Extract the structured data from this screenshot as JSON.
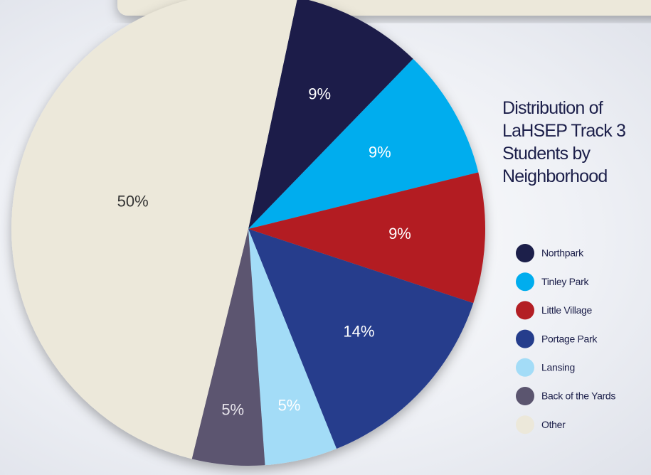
{
  "chart_data": {
    "type": "pie",
    "title": "Distribution of LaHSEP Track 3 Students by Neighborhood",
    "categories": [
      "Northpark",
      "Tinley Park",
      "Little Village",
      "Portage Park",
      "Lansing",
      "Back of the Yards",
      "Other"
    ],
    "values": [
      9,
      9,
      9,
      14,
      5,
      5,
      50
    ],
    "value_labels": [
      "9%",
      "9%",
      "9%",
      "14%",
      "5%",
      "5%",
      "50%"
    ],
    "colors": [
      "#1c1f4a",
      "#00adee",
      "#b31e24",
      "#253d8c",
      "#a3dcf7",
      "#5b556f",
      "#ece8da"
    ],
    "label_colors": [
      "#ffffff",
      "#ffffff",
      "#ffffff",
      "#ffffff",
      "#ffffff",
      "#e6e3ea",
      "#333333"
    ]
  }
}
